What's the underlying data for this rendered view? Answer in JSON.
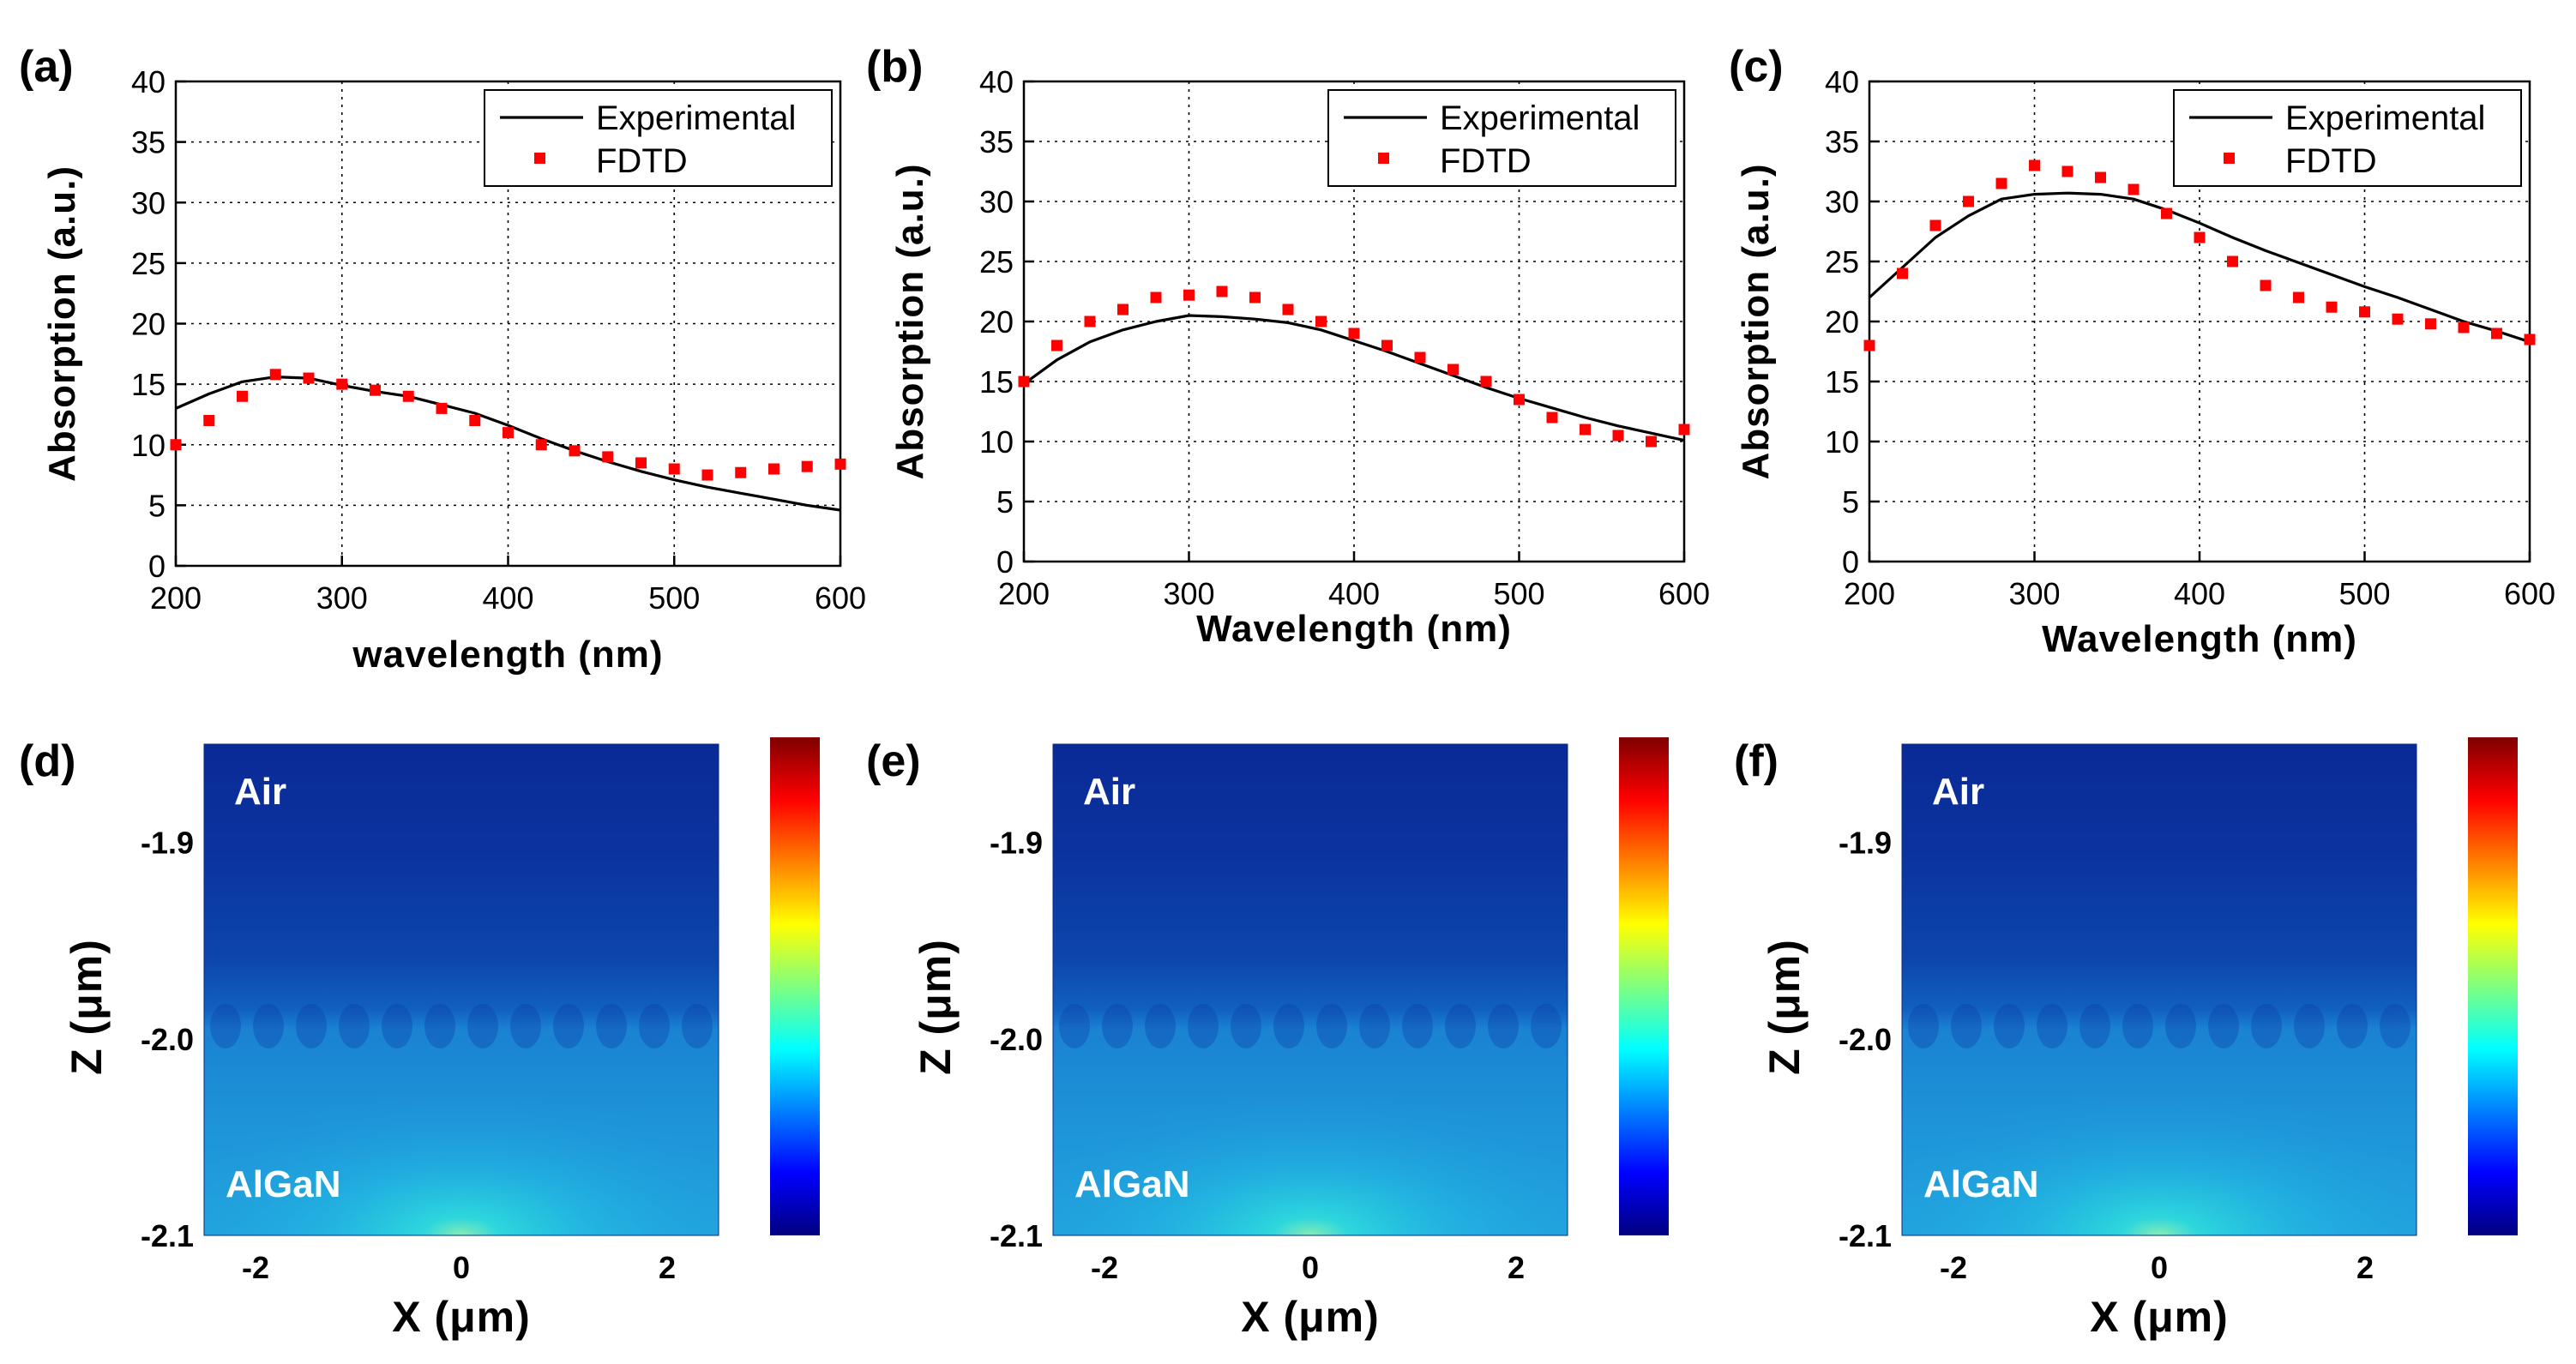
{
  "chart_data": [
    {
      "type": "line",
      "panel_label": "(a)",
      "xlabel": "wavelength (nm)",
      "ylabel": "Absorption (a.u.)",
      "xlim": [
        200,
        600
      ],
      "ylim": [
        0,
        40
      ],
      "xticks": [
        "200",
        "300",
        "400",
        "500",
        "600"
      ],
      "yticks": [
        "0",
        "5",
        "10",
        "15",
        "20",
        "25",
        "30",
        "35",
        "40"
      ],
      "grid": true,
      "legend_position": "top-right",
      "series": [
        {
          "name": "Experimental",
          "style": "line",
          "color": "#000000",
          "x": [
            200,
            220,
            240,
            260,
            280,
            300,
            320,
            340,
            360,
            380,
            400,
            420,
            440,
            460,
            480,
            500,
            520,
            540,
            560,
            580,
            600
          ],
          "y": [
            13.0,
            14.2,
            15.2,
            15.6,
            15.5,
            14.9,
            14.4,
            14.0,
            13.3,
            12.6,
            11.6,
            10.5,
            9.5,
            8.6,
            7.8,
            7.1,
            6.5,
            6.0,
            5.5,
            5.0,
            4.6
          ]
        },
        {
          "name": "FDTD",
          "style": "markers",
          "color": "#ff0000",
          "x": [
            200,
            220,
            240,
            260,
            280,
            300,
            320,
            340,
            360,
            380,
            400,
            420,
            440,
            460,
            480,
            500,
            520,
            540,
            560,
            580,
            600
          ],
          "y": [
            10.0,
            12.0,
            14.0,
            15.8,
            15.5,
            15.0,
            14.5,
            14.0,
            13.0,
            12.0,
            11.0,
            10.0,
            9.5,
            9.0,
            8.5,
            8.0,
            7.5,
            7.7,
            8.0,
            8.2,
            8.4
          ]
        }
      ]
    },
    {
      "type": "line",
      "panel_label": "(b)",
      "xlabel": "Wavelength (nm)",
      "ylabel": "Absorption (a.u.)",
      "xlim": [
        200,
        600
      ],
      "ylim": [
        0,
        40
      ],
      "xticks": [
        "200",
        "300",
        "400",
        "500",
        "600"
      ],
      "yticks": [
        "0",
        "5",
        "10",
        "15",
        "20",
        "25",
        "30",
        "35",
        "40"
      ],
      "grid": true,
      "legend_position": "top-right",
      "series": [
        {
          "name": "Experimental",
          "style": "line",
          "color": "#000000",
          "x": [
            200,
            220,
            240,
            260,
            280,
            300,
            320,
            340,
            360,
            380,
            400,
            420,
            440,
            460,
            480,
            500,
            520,
            540,
            560,
            580,
            600
          ],
          "y": [
            14.8,
            16.8,
            18.3,
            19.3,
            20.0,
            20.5,
            20.4,
            20.2,
            19.9,
            19.3,
            18.4,
            17.5,
            16.5,
            15.5,
            14.5,
            13.6,
            12.8,
            12.0,
            11.3,
            10.7,
            10.1
          ]
        },
        {
          "name": "FDTD",
          "style": "markers",
          "color": "#ff0000",
          "x": [
            200,
            220,
            240,
            260,
            280,
            300,
            320,
            340,
            360,
            380,
            400,
            420,
            440,
            460,
            480,
            500,
            520,
            540,
            560,
            580,
            600
          ],
          "y": [
            15.0,
            18.0,
            20.0,
            21.0,
            22.0,
            22.2,
            22.5,
            22.0,
            21.0,
            20.0,
            19.0,
            18.0,
            17.0,
            16.0,
            15.0,
            13.5,
            12.0,
            11.0,
            10.5,
            10.0,
            11.0
          ]
        }
      ]
    },
    {
      "type": "line",
      "panel_label": "(c)",
      "xlabel": "Wavelength (nm)",
      "ylabel": "Absorption (a.u.)",
      "xlim": [
        200,
        600
      ],
      "ylim": [
        0,
        40
      ],
      "xticks": [
        "200",
        "300",
        "400",
        "500",
        "600"
      ],
      "yticks": [
        "0",
        "5",
        "10",
        "15",
        "20",
        "25",
        "30",
        "35",
        "40"
      ],
      "grid": true,
      "legend_position": "top-right",
      "series": [
        {
          "name": "Experimental",
          "style": "line",
          "color": "#000000",
          "x": [
            200,
            220,
            240,
            260,
            280,
            300,
            320,
            340,
            360,
            380,
            400,
            420,
            440,
            460,
            480,
            500,
            520,
            540,
            560,
            580,
            600
          ],
          "y": [
            22.0,
            24.5,
            27.0,
            28.8,
            30.2,
            30.6,
            30.7,
            30.6,
            30.2,
            29.3,
            28.2,
            27.0,
            25.9,
            24.9,
            23.9,
            22.9,
            22.0,
            21.0,
            20.0,
            19.2,
            18.3
          ]
        },
        {
          "name": "FDTD",
          "style": "markers",
          "color": "#ff0000",
          "x": [
            200,
            220,
            240,
            260,
            280,
            300,
            320,
            340,
            360,
            380,
            400,
            420,
            440,
            460,
            480,
            500,
            520,
            540,
            560,
            580,
            600
          ],
          "y": [
            18.0,
            24.0,
            28.0,
            30.0,
            31.5,
            33.0,
            32.5,
            32.0,
            31.0,
            29.0,
            27.0,
            25.0,
            23.0,
            22.0,
            21.2,
            20.8,
            20.2,
            19.8,
            19.5,
            19.0,
            18.5
          ]
        }
      ]
    },
    {
      "type": "heatmap",
      "panel_label": "(d)",
      "xlabel": "X (μm)",
      "ylabel": "Z (μm)",
      "xlim": [
        -2.5,
        2.5
      ],
      "ylim": [
        -2.1,
        -1.85
      ],
      "xticks": [
        "-2",
        "0",
        "2"
      ],
      "yticks": [
        "-1.9",
        "-2.0",
        "-2.1"
      ],
      "region_labels": [
        "Air",
        "AlGaN"
      ],
      "colormap": "jet"
    },
    {
      "type": "heatmap",
      "panel_label": "(e)",
      "xlabel": "X (μm)",
      "ylabel": "Z (μm)",
      "xlim": [
        -2.5,
        2.5
      ],
      "ylim": [
        -2.1,
        -1.85
      ],
      "xticks": [
        "-2",
        "0",
        "2"
      ],
      "yticks": [
        "-1.9",
        "-2.0",
        "-2.1"
      ],
      "region_labels": [
        "Air",
        "AlGaN"
      ],
      "colormap": "jet"
    },
    {
      "type": "heatmap",
      "panel_label": "(f)",
      "xlabel": "X (μm)",
      "ylabel": "Z (μm)",
      "xlim": [
        -2.5,
        2.5
      ],
      "ylim": [
        -2.1,
        -1.85
      ],
      "xticks": [
        "-2",
        "0",
        "2"
      ],
      "yticks": [
        "-1.9",
        "-2.0",
        "-2.1"
      ],
      "region_labels": [
        "Air",
        "AlGaN"
      ],
      "colormap": "jet"
    }
  ]
}
